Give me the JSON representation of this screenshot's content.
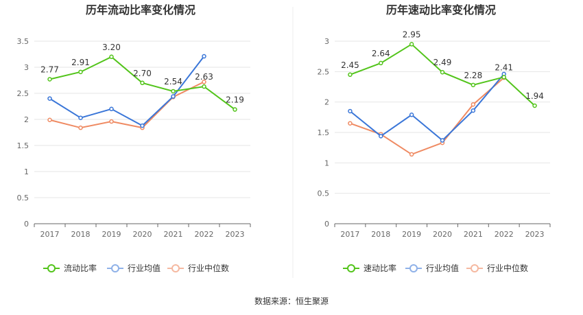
{
  "colors": {
    "series": [
      "#52c41a",
      "#3a76d8",
      "#ef8a62"
    ],
    "legend_marker": [
      "#52c41a",
      "#8fb1e8",
      "#f5b8a0"
    ],
    "grid": "#e6e6e6",
    "axis": "#666666",
    "divider": "#eeeeee"
  },
  "chart_data": [
    {
      "type": "line",
      "title": "历年流动比率变化情况",
      "categories": [
        "2017",
        "2018",
        "2019",
        "2020",
        "2021",
        "2022",
        "2023"
      ],
      "yticks": [
        "0",
        "0.5",
        "1",
        "1.5",
        "2",
        "2.5",
        "3",
        "3.5"
      ],
      "ylim": [
        0,
        3.5
      ],
      "xlabel": "",
      "ylabel": "",
      "grid": true,
      "legend_position": "bottom",
      "series": [
        {
          "name": "流动比率",
          "values": [
            2.77,
            2.91,
            3.2,
            2.7,
            2.54,
            2.63,
            2.19
          ],
          "labels": [
            "2.77",
            "2.91",
            "3.20",
            "2.70",
            "2.54",
            "2.63",
            "2.19"
          ]
        },
        {
          "name": "行业均值",
          "values": [
            2.4,
            2.03,
            2.2,
            1.88,
            2.44,
            3.21,
            null
          ]
        },
        {
          "name": "行业中位数",
          "values": [
            1.99,
            1.84,
            1.96,
            1.84,
            2.43,
            2.72,
            null
          ]
        }
      ]
    },
    {
      "type": "line",
      "title": "历年速动比率变化情况",
      "categories": [
        "2017",
        "2018",
        "2019",
        "2020",
        "2021",
        "2022",
        "2023"
      ],
      "yticks": [
        "0",
        "0.5",
        "1",
        "1.5",
        "2",
        "2.5",
        "3"
      ],
      "ylim": [
        0,
        3
      ],
      "xlabel": "",
      "ylabel": "",
      "grid": true,
      "legend_position": "bottom",
      "series": [
        {
          "name": "速动比率",
          "values": [
            2.45,
            2.64,
            2.95,
            2.49,
            2.28,
            2.41,
            1.94
          ],
          "labels": [
            "2.45",
            "2.64",
            "2.95",
            "2.49",
            "2.28",
            "2.41",
            "1.94"
          ]
        },
        {
          "name": "行业均值",
          "values": [
            1.85,
            1.44,
            1.79,
            1.37,
            1.86,
            2.46,
            null
          ]
        },
        {
          "name": "行业中位数",
          "values": [
            1.65,
            1.47,
            1.14,
            1.33,
            1.96,
            2.4,
            null
          ]
        }
      ]
    }
  ],
  "footer": {
    "source": "数据来源：恒生聚源"
  }
}
